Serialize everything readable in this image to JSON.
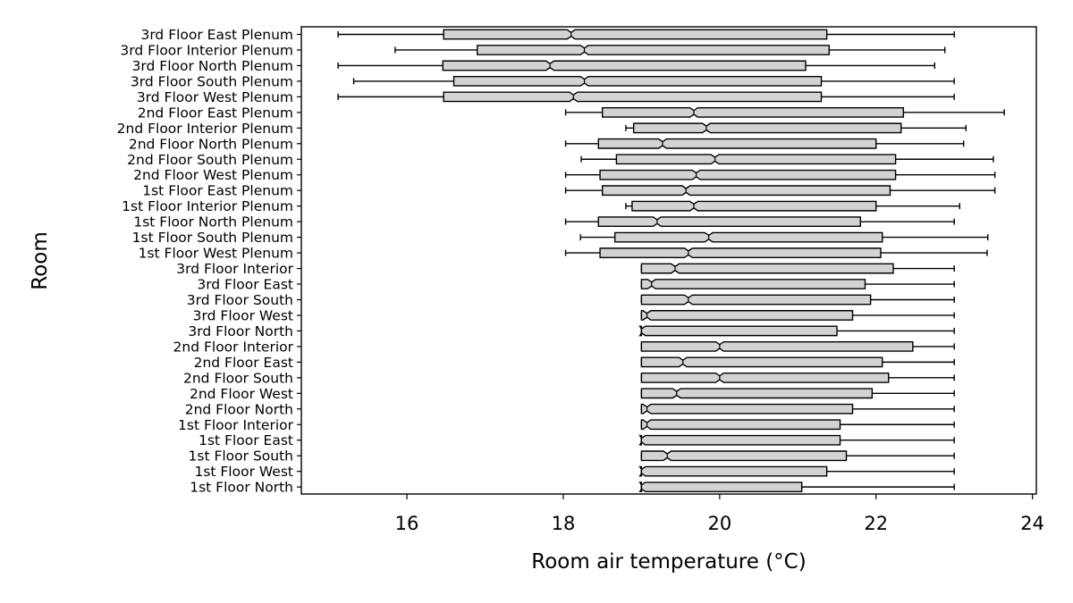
{
  "chart_data": {
    "type": "boxplot",
    "orientation": "horizontal",
    "notched": true,
    "xlabel": "Room air temperature (°C)",
    "ylabel": "Room",
    "xlim": [
      14.65,
      24.05
    ],
    "xticks": [
      "16",
      "18",
      "20",
      "22",
      "24"
    ],
    "grid": false,
    "box_fill": "#d3d3d3",
    "line_color": "#000000",
    "categories": [
      "3rd Floor East Plenum",
      "3rd Floor Interior Plenum",
      "3rd Floor North Plenum",
      "3rd Floor South Plenum",
      "3rd Floor West Plenum",
      "2nd Floor East Plenum",
      "2nd Floor Interior Plenum",
      "2nd Floor North Plenum",
      "2nd Floor South Plenum",
      "2nd Floor West Plenum",
      "1st Floor East Plenum",
      "1st Floor Interior Plenum",
      "1st Floor North Plenum",
      "1st Floor South Plenum",
      "1st Floor West Plenum",
      "3rd Floor Interior",
      "3rd Floor East",
      "3rd Floor South",
      "3rd Floor West",
      "3rd Floor North",
      "2nd Floor Interior",
      "2nd Floor East",
      "2nd Floor South",
      "2nd Floor West",
      "2nd Floor North",
      "1st Floor Interior",
      "1st Floor East",
      "1st Floor South",
      "1st Floor West",
      "1st Floor North"
    ],
    "boxes": [
      {
        "whislo": 15.12,
        "q1": 16.47,
        "med": 18.1,
        "q3": 21.37,
        "whishi": 23.0,
        "notch_lo": 18.05,
        "notch_hi": 18.15
      },
      {
        "whislo": 15.85,
        "q1": 16.9,
        "med": 18.27,
        "q3": 21.4,
        "whishi": 22.88,
        "notch_lo": 18.22,
        "notch_hi": 18.32
      },
      {
        "whislo": 15.12,
        "q1": 16.46,
        "med": 17.83,
        "q3": 21.1,
        "whishi": 22.75,
        "notch_lo": 17.78,
        "notch_hi": 17.88
      },
      {
        "whislo": 15.32,
        "q1": 16.6,
        "med": 18.27,
        "q3": 21.3,
        "whishi": 23.0,
        "notch_lo": 18.22,
        "notch_hi": 18.32
      },
      {
        "whislo": 15.12,
        "q1": 16.47,
        "med": 18.13,
        "q3": 21.3,
        "whishi": 23.0,
        "notch_lo": 18.08,
        "notch_hi": 18.18
      },
      {
        "whislo": 18.03,
        "q1": 18.5,
        "med": 19.67,
        "q3": 22.35,
        "whishi": 23.64,
        "notch_lo": 19.62,
        "notch_hi": 19.72
      },
      {
        "whislo": 18.8,
        "q1": 18.9,
        "med": 19.83,
        "q3": 22.32,
        "whishi": 23.15,
        "notch_lo": 19.78,
        "notch_hi": 19.88
      },
      {
        "whislo": 18.03,
        "q1": 18.45,
        "med": 19.27,
        "q3": 22.0,
        "whishi": 23.12,
        "notch_lo": 19.22,
        "notch_hi": 19.32
      },
      {
        "whislo": 18.23,
        "q1": 18.68,
        "med": 19.94,
        "q3": 22.25,
        "whishi": 23.5,
        "notch_lo": 19.89,
        "notch_hi": 19.99
      },
      {
        "whislo": 18.03,
        "q1": 18.47,
        "med": 19.7,
        "q3": 22.25,
        "whishi": 23.52,
        "notch_lo": 19.65,
        "notch_hi": 19.75
      },
      {
        "whislo": 18.03,
        "q1": 18.5,
        "med": 19.57,
        "q3": 22.18,
        "whishi": 23.52,
        "notch_lo": 19.52,
        "notch_hi": 19.62
      },
      {
        "whislo": 18.8,
        "q1": 18.88,
        "med": 19.67,
        "q3": 22.0,
        "whishi": 23.07,
        "notch_lo": 19.62,
        "notch_hi": 19.72
      },
      {
        "whislo": 18.03,
        "q1": 18.45,
        "med": 19.2,
        "q3": 21.8,
        "whishi": 23.0,
        "notch_lo": 19.15,
        "notch_hi": 19.25
      },
      {
        "whislo": 18.22,
        "q1": 18.66,
        "med": 19.86,
        "q3": 22.08,
        "whishi": 23.43,
        "notch_lo": 19.81,
        "notch_hi": 19.91
      },
      {
        "whislo": 18.03,
        "q1": 18.47,
        "med": 19.6,
        "q3": 22.06,
        "whishi": 23.42,
        "notch_lo": 19.55,
        "notch_hi": 19.65
      },
      {
        "whislo": 19.0,
        "q1": 19.0,
        "med": 19.43,
        "q3": 22.22,
        "whishi": 23.0,
        "notch_lo": 19.38,
        "notch_hi": 19.48
      },
      {
        "whislo": 19.0,
        "q1": 19.0,
        "med": 19.13,
        "q3": 21.86,
        "whishi": 23.0,
        "notch_lo": 19.08,
        "notch_hi": 19.18
      },
      {
        "whislo": 19.0,
        "q1": 19.0,
        "med": 19.6,
        "q3": 21.93,
        "whishi": 23.0,
        "notch_lo": 19.55,
        "notch_hi": 19.65
      },
      {
        "whislo": 19.0,
        "q1": 19.0,
        "med": 19.07,
        "q3": 21.7,
        "whishi": 23.0,
        "notch_lo": 19.02,
        "notch_hi": 19.12
      },
      {
        "whislo": 19.0,
        "q1": 19.0,
        "med": 19.0,
        "q3": 21.5,
        "whishi": 23.0,
        "notch_lo": 18.98,
        "notch_hi": 19.05
      },
      {
        "whislo": 19.0,
        "q1": 19.0,
        "med": 20.0,
        "q3": 22.47,
        "whishi": 23.0,
        "notch_lo": 19.95,
        "notch_hi": 20.05
      },
      {
        "whislo": 19.0,
        "q1": 19.0,
        "med": 19.53,
        "q3": 22.08,
        "whishi": 23.0,
        "notch_lo": 19.48,
        "notch_hi": 19.58
      },
      {
        "whislo": 19.0,
        "q1": 19.0,
        "med": 20.0,
        "q3": 22.16,
        "whishi": 23.0,
        "notch_lo": 19.95,
        "notch_hi": 20.05
      },
      {
        "whislo": 19.0,
        "q1": 19.0,
        "med": 19.45,
        "q3": 21.95,
        "whishi": 23.0,
        "notch_lo": 19.4,
        "notch_hi": 19.5
      },
      {
        "whislo": 19.0,
        "q1": 19.0,
        "med": 19.07,
        "q3": 21.7,
        "whishi": 23.0,
        "notch_lo": 19.02,
        "notch_hi": 19.12
      },
      {
        "whislo": 19.0,
        "q1": 19.0,
        "med": 19.07,
        "q3": 21.54,
        "whishi": 23.0,
        "notch_lo": 19.02,
        "notch_hi": 19.12
      },
      {
        "whislo": 19.0,
        "q1": 19.0,
        "med": 19.0,
        "q3": 21.54,
        "whishi": 23.0,
        "notch_lo": 18.98,
        "notch_hi": 19.05
      },
      {
        "whislo": 19.0,
        "q1": 19.0,
        "med": 19.33,
        "q3": 21.62,
        "whishi": 23.0,
        "notch_lo": 19.28,
        "notch_hi": 19.38
      },
      {
        "whislo": 19.0,
        "q1": 19.0,
        "med": 19.0,
        "q3": 21.37,
        "whishi": 23.0,
        "notch_lo": 18.98,
        "notch_hi": 19.05
      },
      {
        "whislo": 19.0,
        "q1": 19.0,
        "med": 19.0,
        "q3": 21.05,
        "whishi": 23.0,
        "notch_lo": 18.98,
        "notch_hi": 19.05
      }
    ]
  }
}
